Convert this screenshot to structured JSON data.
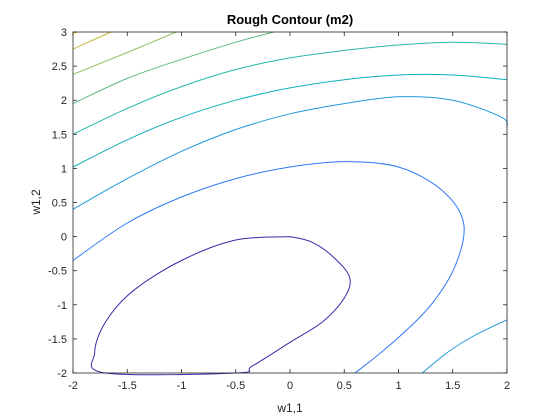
{
  "chart_data": {
    "type": "contour",
    "title": "Rough Contour (m2)",
    "xlabel": "w1,1",
    "ylabel": "w1,2",
    "xlim": [
      -2,
      2
    ],
    "ylim": [
      -2,
      3
    ],
    "xticks": [
      "-2",
      "-1.5",
      "-1",
      "-0.5",
      "0",
      "0.5",
      "1",
      "1.5",
      "2"
    ],
    "yticks": [
      "-2",
      "-1.5",
      "-1",
      "-0.5",
      "0",
      "0.5",
      "1",
      "1.5",
      "2",
      "2.5",
      "3"
    ],
    "grid": false,
    "colormap": "parula",
    "contours": [
      {
        "color": "#3e26a8",
        "points": [
          [
            0,
            0
          ],
          [
            0.2,
            -0.08
          ],
          [
            0.4,
            -0.3
          ],
          [
            0.55,
            -0.6
          ],
          [
            0.5,
            -0.9
          ],
          [
            0.3,
            -1.25
          ],
          [
            0,
            -1.55
          ],
          [
            -0.35,
            -1.9
          ],
          [
            -0.5,
            -2
          ],
          [
            -1.7,
            -2
          ],
          [
            -1.8,
            -1.7
          ],
          [
            -1.7,
            -1.25
          ],
          [
            -1.45,
            -0.8
          ],
          [
            -1.0,
            -0.35
          ],
          [
            -0.5,
            -0.05
          ],
          [
            0,
            0
          ]
        ]
      },
      {
        "color": "#2f78f6",
        "points": [
          [
            -2,
            -0.35
          ],
          [
            -1.5,
            0.2
          ],
          [
            -1,
            0.58
          ],
          [
            -0.5,
            0.85
          ],
          [
            0,
            1.02
          ],
          [
            0.5,
            1.1
          ],
          [
            1,
            1.02
          ],
          [
            1.4,
            0.68
          ],
          [
            1.6,
            0.2
          ],
          [
            1.53,
            -0.4
          ],
          [
            1.3,
            -1
          ],
          [
            0.95,
            -1.55
          ],
          [
            0.6,
            -2
          ]
        ]
      },
      {
        "color": "#1e98d9",
        "points": [
          [
            -2,
            0.4
          ],
          [
            -1.5,
            0.85
          ],
          [
            -1,
            1.25
          ],
          [
            -0.5,
            1.57
          ],
          [
            0,
            1.8
          ],
          [
            0.5,
            1.95
          ],
          [
            1,
            2.05
          ],
          [
            1.5,
            2.0
          ],
          [
            1.95,
            1.75
          ],
          [
            2,
            1.6
          ]
        ]
      },
      {
        "color": "#1e98d9",
        "points": [
          [
            2,
            -1.22
          ],
          [
            1.7,
            -1.45
          ],
          [
            1.45,
            -1.7
          ],
          [
            1.22,
            -2
          ]
        ]
      },
      {
        "color": "#0fb0b9",
        "points": [
          [
            -2,
            1.02
          ],
          [
            -1.5,
            1.42
          ],
          [
            -1,
            1.75
          ],
          [
            -0.5,
            2.0
          ],
          [
            0,
            2.18
          ],
          [
            0.5,
            2.3
          ],
          [
            1,
            2.37
          ],
          [
            1.5,
            2.37
          ],
          [
            2,
            2.3
          ]
        ]
      },
      {
        "color": "#26b8a8",
        "points": [
          [
            -2,
            1.5
          ],
          [
            -1.5,
            1.88
          ],
          [
            -1,
            2.2
          ],
          [
            -0.5,
            2.45
          ],
          [
            0,
            2.62
          ],
          [
            0.5,
            2.73
          ],
          [
            1,
            2.81
          ],
          [
            1.5,
            2.85
          ],
          [
            2,
            2.82
          ]
        ]
      },
      {
        "color": "#5dbc85",
        "points": [
          [
            -2,
            1.95
          ],
          [
            -1.5,
            2.32
          ],
          [
            -1,
            2.6
          ],
          [
            -0.5,
            2.85
          ],
          [
            -0.15,
            3
          ]
        ]
      },
      {
        "color": "#8ebd5e",
        "points": [
          [
            -2,
            2.38
          ],
          [
            -1.5,
            2.7
          ],
          [
            -1.05,
            3
          ]
        ]
      },
      {
        "color": "#c6bc3f",
        "points": [
          [
            -2,
            2.75
          ],
          [
            -1.65,
            3
          ]
        ]
      },
      {
        "color": "#f5da28",
        "points": [
          [
            -2,
            2.98
          ],
          [
            -1.95,
            3
          ]
        ]
      }
    ]
  }
}
